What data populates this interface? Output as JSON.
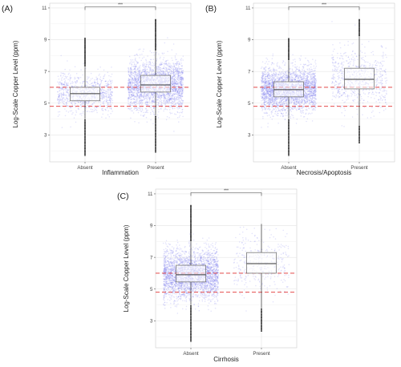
{
  "chart_data": [
    {
      "type": "boxplot",
      "panel_label": "(A)",
      "xlabel": "Inflammation",
      "ylabel": "Log-Scale Copper Level (ppm)",
      "ylim": [
        1.3,
        11.3
      ],
      "yticks": [
        3,
        5,
        7,
        9,
        11
      ],
      "categories": [
        "Absent",
        "Present"
      ],
      "reference_lines": [
        4.8,
        6.0
      ],
      "significance": "***",
      "groups": [
        {
          "category": "Absent",
          "q1": 5.15,
          "median": 5.6,
          "q3": 6.0,
          "whisker_low": 4.0,
          "whisker_high": 7.3,
          "n_points": 900,
          "max": 9.1,
          "min": 1.7
        },
        {
          "category": "Present",
          "q1": 5.7,
          "median": 6.15,
          "q3": 6.75,
          "whisker_low": 4.2,
          "whisker_high": 8.3,
          "n_points": 2600,
          "max": 10.3,
          "min": 1.9
        }
      ]
    },
    {
      "type": "boxplot",
      "panel_label": "(B)",
      "xlabel": "Necrosis/Apoptosis",
      "ylabel": "Log-Scale Copper Level (ppm)",
      "ylim": [
        1.3,
        11.3
      ],
      "yticks": [
        3,
        5,
        7,
        9,
        11
      ],
      "categories": [
        "Absent",
        "Present"
      ],
      "reference_lines": [
        4.8,
        6.0
      ],
      "significance": "***",
      "groups": [
        {
          "category": "Absent",
          "q1": 5.4,
          "median": 5.85,
          "q3": 6.35,
          "whisker_low": 4.0,
          "whisker_high": 7.7,
          "n_points": 2800,
          "max": 9.1,
          "min": 1.7
        },
        {
          "category": "Present",
          "q1": 5.9,
          "median": 6.5,
          "q3": 7.2,
          "whisker_low": 3.6,
          "whisker_high": 9.2,
          "n_points": 700,
          "max": 10.3,
          "min": 2.5
        }
      ]
    },
    {
      "type": "boxplot",
      "panel_label": "(C)",
      "xlabel": "Cirrhosis",
      "ylabel": "Log-Scale Copper Level (ppm)",
      "ylim": [
        1.3,
        11.3
      ],
      "yticks": [
        3,
        5,
        7,
        9,
        11
      ],
      "categories": [
        "Absent",
        "Present"
      ],
      "reference_lines": [
        4.8,
        6.0
      ],
      "significance": "***",
      "groups": [
        {
          "category": "Absent",
          "q1": 5.45,
          "median": 5.9,
          "q3": 6.5,
          "whisker_low": 4.0,
          "whisker_high": 8.0,
          "n_points": 3000,
          "max": 10.3,
          "min": 1.7
        },
        {
          "category": "Present",
          "q1": 6.0,
          "median": 6.6,
          "q3": 7.3,
          "whisker_low": 3.8,
          "whisker_high": 9.1,
          "n_points": 350,
          "max": 9.1,
          "min": 2.3
        }
      ]
    }
  ],
  "style": {
    "point_color": "#7777ee",
    "box_fill": "#ffffff",
    "box_stroke": "#777777",
    "ref_line_color": "#e03030",
    "grid_color": "#e4e4e4",
    "outlier_color": "#111111"
  }
}
